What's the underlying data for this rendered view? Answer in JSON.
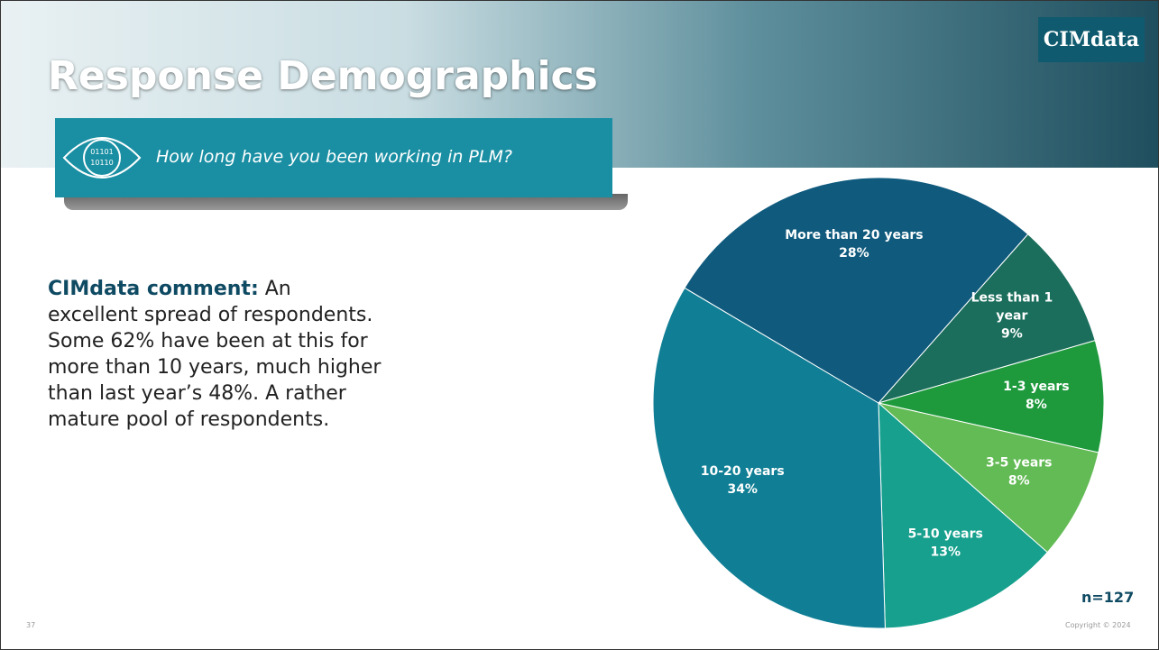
{
  "header": {
    "title": "Response Demographics",
    "logo": "CIMdata",
    "question": "How long have you been working in PLM?",
    "icon_text": [
      "01101",
      "10110"
    ]
  },
  "comment": {
    "label": "CIMdata comment:",
    "text": "An excellent spread of respondents. Some 62% have been at this for more than 10 years, much higher than last year’s 48%. A rather mature pool of respondents."
  },
  "chart_data": {
    "type": "pie",
    "note": "n=127",
    "categories": [
      "Less than 1 year",
      "1-3 years",
      "3-5 years",
      "5-10 years",
      "10-20 years",
      "More than 20 years"
    ],
    "values": [
      9,
      8,
      8,
      13,
      34,
      28
    ],
    "value_labels": [
      "9%",
      "8%",
      "8%",
      "13%",
      "34%",
      "28%"
    ],
    "colors": [
      "#1b6e5c",
      "#1e9a3d",
      "#63bb55",
      "#16a08d",
      "#107f95",
      "#0f5a7d"
    ]
  },
  "footer": {
    "page": "37",
    "copyright": "Copyright © 2024"
  }
}
